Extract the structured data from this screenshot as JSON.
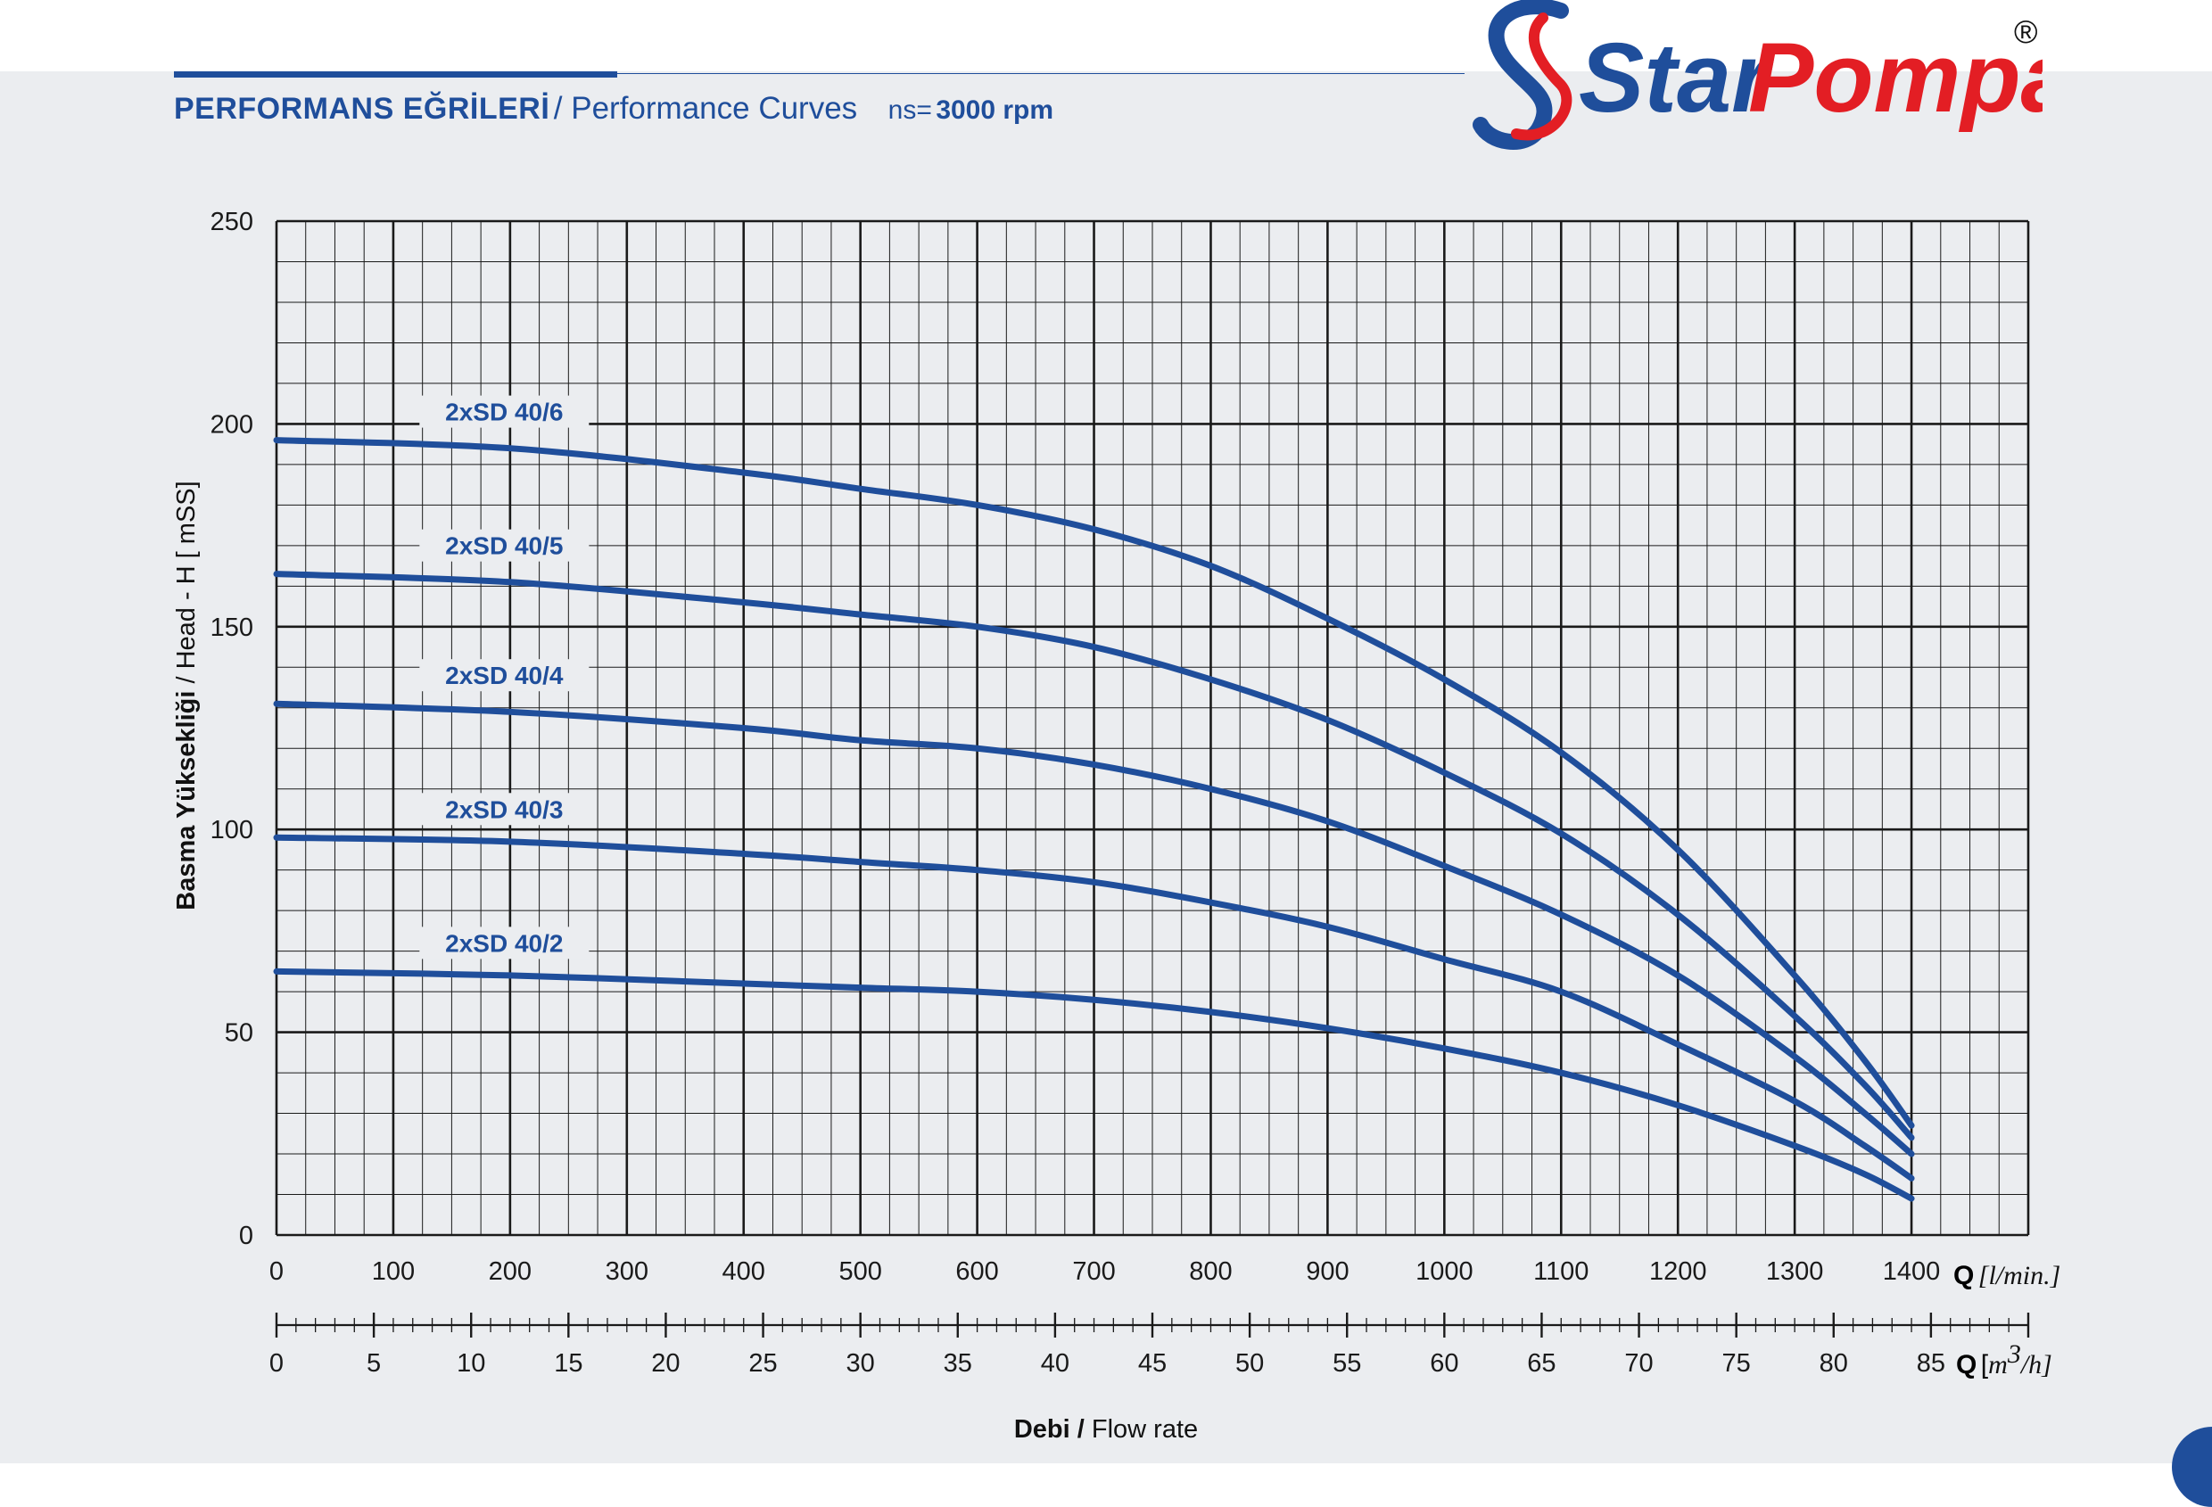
{
  "header": {
    "title_tr": "PERFORMANS EĞRİLERİ",
    "separator": "/",
    "title_en": "Performance Curves",
    "rpm_label": "ns=",
    "rpm_value": "3000 rpm"
  },
  "brand": {
    "name_part1": "Star",
    "name_part2": "Pompa",
    "registered": "®",
    "colors": {
      "blue": "#1f4e9b",
      "red": "#e31e24"
    }
  },
  "chart_data": {
    "type": "line",
    "ylabel_bold": "Basma Yüksekliği",
    "ylabel_sep": "/",
    "ylabel_rest": "Head - H [ mSS]",
    "xlabel_bold": "Debi",
    "xlabel_sep": "/",
    "xlabel_rest": "Flow rate",
    "x_axis_primary": {
      "unit_symbol": "Q",
      "unit": "[l/min.]",
      "range": [
        0,
        1500
      ],
      "ticks": [
        "0",
        "100",
        "200",
        "300",
        "400",
        "500",
        "600",
        "700",
        "800",
        "900",
        "1000",
        "1100",
        "1200",
        "1300",
        "1400"
      ]
    },
    "x_axis_secondary": {
      "unit_symbol": "Q",
      "unit_open": "[",
      "unit_m": "m",
      "unit_sup": "3",
      "unit_close": "/h]",
      "range": [
        0,
        90
      ],
      "ticks": [
        "0",
        "5",
        "10",
        "15",
        "20",
        "25",
        "30",
        "35",
        "40",
        "45",
        "50",
        "55",
        "60",
        "65",
        "70",
        "75",
        "80",
        "85"
      ]
    },
    "y_axis": {
      "range": [
        0,
        250
      ],
      "ticks": [
        "0",
        "50",
        "100",
        "150",
        "200",
        "250"
      ]
    },
    "grid": true,
    "line_color": "#1f4e9b",
    "series": [
      {
        "name": "2xSD 40/6",
        "x": [
          0,
          200,
          400,
          500,
          600,
          700,
          800,
          900,
          1000,
          1100,
          1200,
          1300,
          1360,
          1400
        ],
        "y": [
          196,
          194,
          188,
          184,
          180,
          174,
          165,
          152,
          137,
          119,
          95,
          64,
          43,
          27
        ]
      },
      {
        "name": "2xSD 40/5",
        "x": [
          0,
          200,
          400,
          500,
          600,
          700,
          800,
          900,
          1000,
          1100,
          1200,
          1300,
          1360,
          1400
        ],
        "y": [
          163,
          161,
          156,
          153,
          150,
          145,
          137,
          127,
          114,
          99,
          79,
          54,
          37,
          24
        ]
      },
      {
        "name": "2xSD 40/4",
        "x": [
          0,
          200,
          400,
          500,
          600,
          700,
          800,
          900,
          1000,
          1100,
          1200,
          1300,
          1360,
          1400
        ],
        "y": [
          131,
          129,
          125,
          122,
          120,
          116,
          110,
          102,
          91,
          79,
          64,
          44,
          30,
          20
        ]
      },
      {
        "name": "2xSD 40/3",
        "x": [
          0,
          200,
          400,
          500,
          600,
          700,
          800,
          900,
          1000,
          1100,
          1200,
          1300,
          1360,
          1400
        ],
        "y": [
          98,
          97,
          94,
          92,
          90,
          87,
          82,
          76,
          68,
          60,
          47,
          33,
          22,
          14
        ]
      },
      {
        "name": "2xSD 40/2",
        "x": [
          0,
          200,
          400,
          500,
          600,
          700,
          800,
          900,
          1000,
          1100,
          1200,
          1300,
          1360,
          1400
        ],
        "y": [
          65,
          64,
          62,
          61,
          60,
          58,
          55,
          51,
          46,
          40,
          32,
          22,
          15,
          9
        ]
      }
    ]
  }
}
